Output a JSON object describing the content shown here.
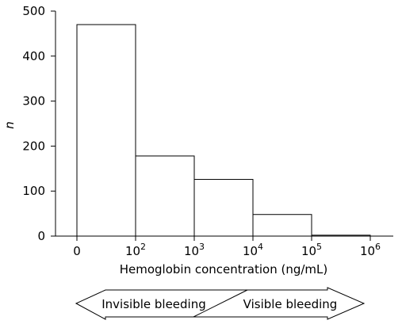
{
  "chart_data": {
    "type": "bar",
    "categories": [
      "0 - 10^2",
      "10^2 - 10^3",
      "10^3 - 10^4",
      "10^4 - 10^5",
      "10^5 - 10^6"
    ],
    "values": [
      470,
      178,
      126,
      48,
      2
    ],
    "bin_edges": [
      {
        "base": "0",
        "exp": ""
      },
      {
        "base": "10",
        "exp": "2"
      },
      {
        "base": "10",
        "exp": "3"
      },
      {
        "base": "10",
        "exp": "4"
      },
      {
        "base": "10",
        "exp": "5"
      },
      {
        "base": "10",
        "exp": "6"
      }
    ],
    "xlabel": "Hemoglobin concentration (ng/mL)",
    "ylabel": "n",
    "ylim": [
      0,
      500
    ],
    "yticks": [
      "0",
      "100",
      "200",
      "300",
      "400",
      "500"
    ],
    "grid": false,
    "bar_fill": "#ffffff",
    "bar_stroke": "#000000"
  },
  "annotation": {
    "left_label": "Invisible bleeding",
    "right_label": "Visible bleeding"
  }
}
